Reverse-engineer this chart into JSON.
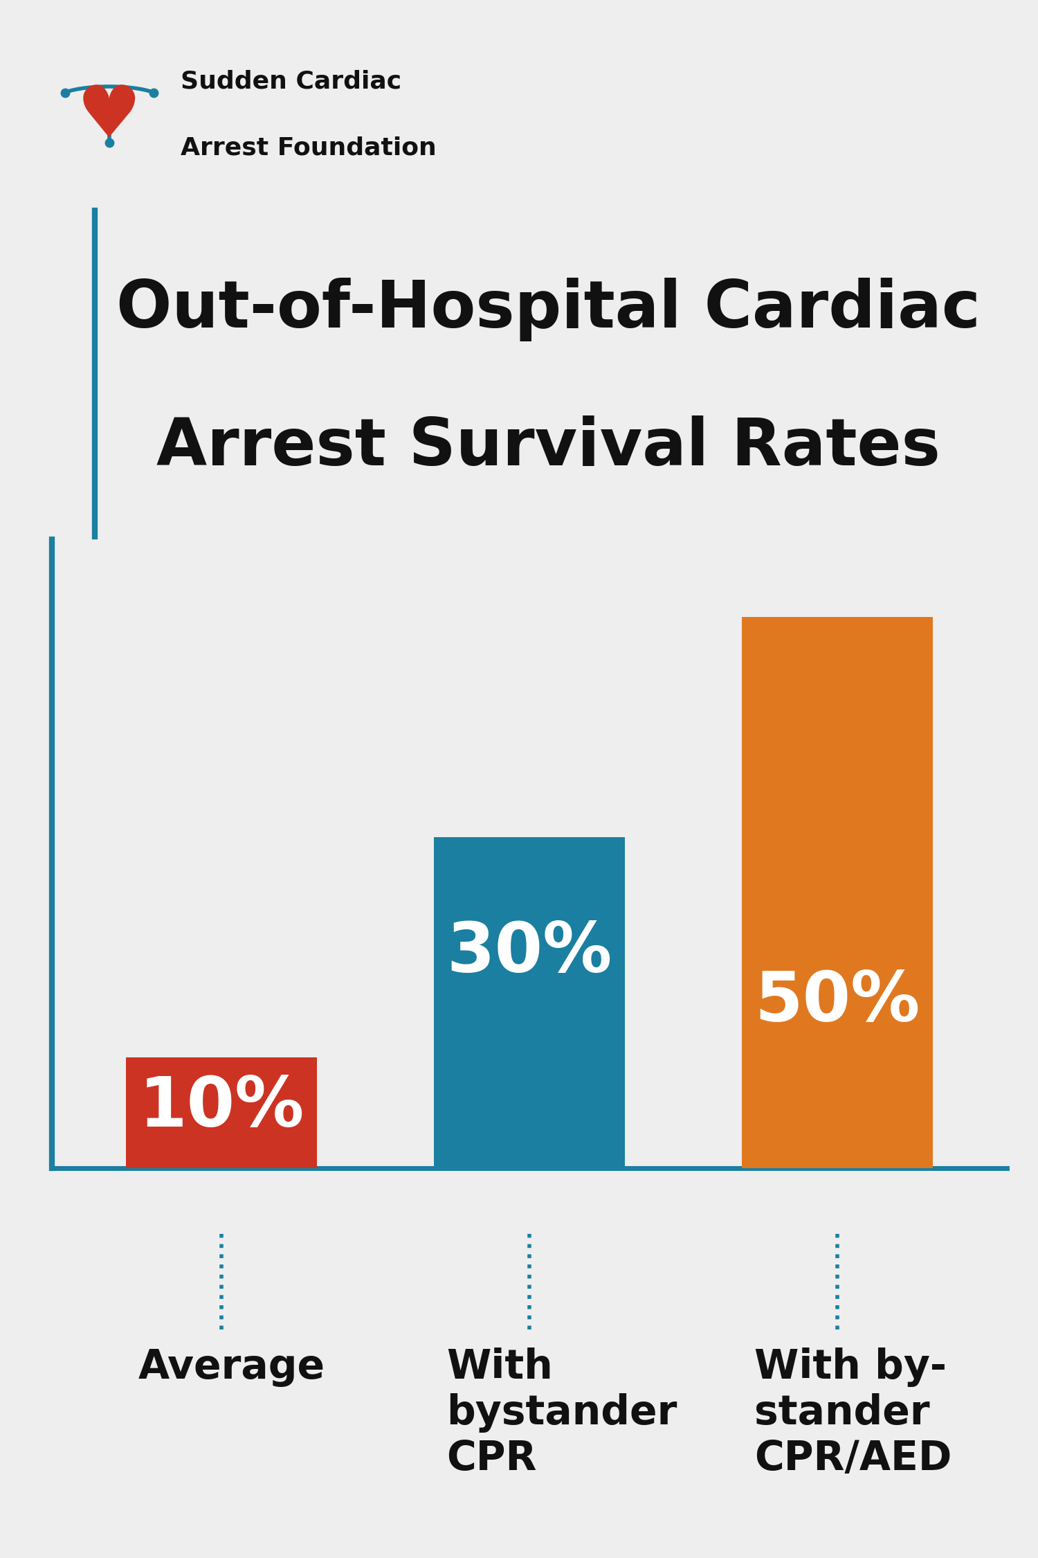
{
  "title_line1": "Out-of-Hospital Cardiac",
  "title_line2": "Arrest Survival Rates",
  "values": [
    10,
    30,
    50
  ],
  "bar_colors": [
    "#cc3322",
    "#1a7fa0",
    "#e07820"
  ],
  "bar_labels": [
    "10%",
    "30%",
    "50%"
  ],
  "cat_labels": [
    "Average",
    "With\nbystander\nCPR",
    "With by-\nstander\nCPR/AED"
  ],
  "background_color": "#eeeeee",
  "axis_line_color": "#1a7fa0",
  "title_fontsize": 68,
  "label_fontsize": 72,
  "tick_label_fontsize": 42,
  "logo_heart_color": "#cc3322",
  "logo_arc_color": "#1a7fa0",
  "org_name_line1": "Sudden Cardiac",
  "org_name_line2": "Arrest Foundation",
  "org_name_fontsize": 26
}
